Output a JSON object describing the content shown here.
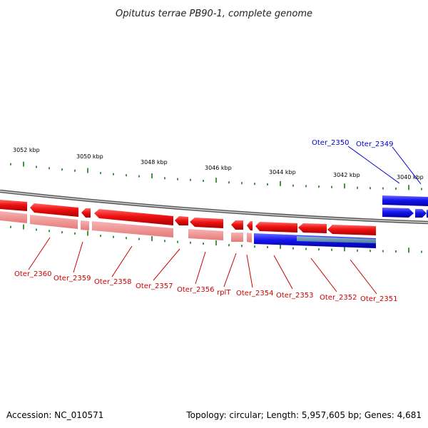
{
  "title": "Opitutus terrae PB90-1, complete genome",
  "accession": "Accession: NC_010571",
  "summary": "Topology: circular; Length: 5,957,605 bp; Genes: 4,681",
  "ruler_labels": [
    "3052 kbp",
    "3050 kbp",
    "3048 kbp",
    "3046 kbp",
    "3044 kbp",
    "3042 kbp",
    "3040 kbp"
  ],
  "genes_minus": [
    "Oter_2360",
    "Oter_2359",
    "Oter_2358",
    "Oter_2357",
    "Oter_2356",
    "rplT",
    "Oter_2354",
    "Oter_2353",
    "Oter_2352",
    "Oter_2351"
  ],
  "genes_plus": [
    "Oter_2350",
    "Oter_2349"
  ],
  "colors": {
    "minus_strand": "#ee1111",
    "minus_light": "#f39a9a",
    "plus_strand": "#1a1aee",
    "tick": "#2e8b2e",
    "backbone": "#777777"
  }
}
